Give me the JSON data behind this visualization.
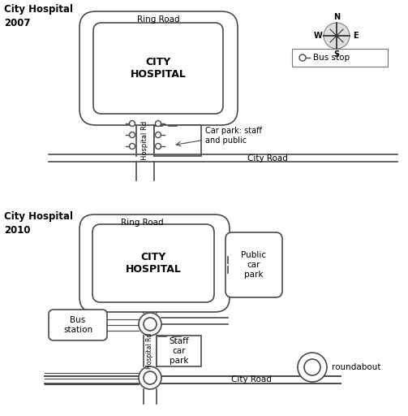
{
  "bg_color": "#ffffff",
  "line_color": "#4a4a4a",
  "map1_title": "City Hospital\n2007",
  "map2_title": "City Hospital\n2010",
  "ring_road_label": "Ring Road",
  "hospital_label": "CITY\nHOSPITAL",
  "city_road_label": "City Road",
  "hospital_rd_label": "Hospital Rd",
  "car_park_label_2007": "Car park: staff\nand public",
  "public_car_park_label": "Public\ncar\npark",
  "staff_car_park_label": "Staff\ncar\npark",
  "bus_station_label": "Bus\nstation",
  "bus_stop_legend": "Bus stop",
  "roundabout_legend": "roundabout",
  "compass_labels": [
    "N",
    "E",
    "S",
    "W"
  ]
}
